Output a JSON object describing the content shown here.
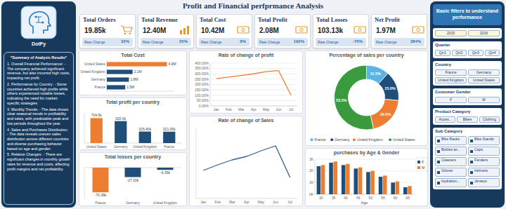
{
  "header": {
    "title": "Profit and Financial perfprmance Analysis"
  },
  "logo": {
    "text": "DotPy"
  },
  "summary": {
    "title": "*Summary of Analysis Results*",
    "items": [
      "1. Overall Financial Performance: - The company achieved significant revenue, but also incurred high costs, impacting net profit.",
      "2. Performance by Country: - Some countries achieved high profits while others experienced notable losses, indicating the need for market-specific strategies.",
      "3. Monthly Trends: - The data shows clear seasonal trends in profitability and sales, with predictable peak and low periods throughout the year.",
      "4. Sales and Purchases Distribution: - The data reveals uneven sales distribution across different countries and diverse purchasing behavior based on age and gender.",
      "5. Relative Changes: - There are significant changes in monthly growth rates for revenue and costs, affecting profit margins and net profitability."
    ]
  },
  "kpis": [
    {
      "title": "Total Orders",
      "value": "19.85k",
      "rate_label": "Rate Change",
      "rate": "32%"
    },
    {
      "title": "Total Revenue",
      "value": "12.40M",
      "rate_label": "Rate Change",
      "rate": "25%"
    },
    {
      "title": "Total Cost",
      "value": "10.42M",
      "rate_label": "Rate Change",
      "rate": "8%"
    },
    {
      "title": "Total Profit",
      "value": "2.08M",
      "rate_label": "Rate Change",
      "rate": "192%"
    },
    {
      "title": "Total Losses",
      "value": "103.13k",
      "rate_label": "Rate Change",
      "rate": "-76%"
    },
    {
      "title": "Net Profit",
      "value": "1.97M",
      "rate_label": "Rate Change",
      "rate": "384%"
    }
  ],
  "filters": {
    "title": "Basic filters to understand performance",
    "groups": [
      {
        "options": [
          "2015",
          "2016"
        ]
      },
      {
        "label": "Quarter",
        "options": [
          "Qtr1",
          "Qtr2",
          "Qtr3",
          "Qtr4"
        ]
      },
      {
        "label": "Country",
        "options": [
          "France",
          "Germany",
          "United Kingdom",
          "United States"
        ]
      },
      {
        "label": "Customer Gender",
        "options": [
          "F",
          "M"
        ]
      },
      {
        "label": "Product Category",
        "options": [
          "Acces...",
          "Bikes",
          "Clothing"
        ]
      },
      {
        "label": "Sub Category",
        "options": [
          "Bike Racks",
          "Bike Stands",
          "Bottles an...",
          "Caps",
          "Cleaners",
          "Fenders",
          "Gloves",
          "Helmets",
          "Hydration...",
          "Jerseys"
        ]
      }
    ]
  },
  "chart_data": [
    {
      "type": "bar",
      "orientation": "horizontal",
      "title": "Total Cost",
      "categories": [
        "United States",
        "United Kingdom",
        "Germany",
        "France"
      ],
      "values": [
        4900000,
        2100000,
        1800000,
        1500000
      ],
      "value_labels": [
        "4.9M",
        "2.1M",
        "1.8M",
        "1.5M"
      ],
      "colors": [
        "#ed7d31",
        "#1f4e79",
        "#1f4e79",
        "#1f4e79"
      ],
      "xlim": [
        0,
        5500000
      ],
      "data_labels": true,
      "tick_labels": "y"
    },
    {
      "type": "bar",
      "title": "Total profit per country",
      "categories": [
        "United States",
        "Germany",
        "United Kingdom",
        "France"
      ],
      "values": [
        704500,
        620000,
        325400,
        321050
      ],
      "value_labels": [
        "704.5k",
        "620.0k",
        "325.40k",
        "321.05k"
      ],
      "colors": [
        "#ed7d31",
        "#1f4e79",
        "#1f4e79",
        "#1f4e79"
      ],
      "ylim": [
        0,
        850000
      ],
      "data_labels": true,
      "tick_labels": "x"
    },
    {
      "type": "bar",
      "title": "Total losses per country",
      "categories": [
        "France",
        "Germany",
        "United Kingdom"
      ],
      "values": [
        -70390,
        -27000,
        -6390
      ],
      "value_labels": [
        "-70.39k",
        "-27.00k",
        "-6.39k"
      ],
      "colors": [
        "#ed7d31",
        "#1f4e79",
        "#1f4e79"
      ],
      "ylim": [
        -90000,
        0
      ],
      "data_labels": true,
      "tick_labels": "x"
    },
    {
      "type": "line",
      "title": "Rate of change of profit",
      "categories": [
        "Jan",
        "Feb",
        "Mar",
        "Apr",
        "May",
        "Jun",
        "Jul"
      ],
      "values": [
        255,
        270,
        285,
        300,
        320,
        330,
        100
      ],
      "color": "#ed7d31",
      "ylim": [
        0,
        400
      ],
      "yticks": [
        {
          "value": 0,
          "label": "0.00%"
        },
        {
          "value": 50,
          "label": "50.00%"
        },
        {
          "value": 100,
          "label": "100.00%"
        },
        {
          "value": 150,
          "label": "150.00%"
        },
        {
          "value": 200,
          "label": "200.00%"
        },
        {
          "value": 250,
          "label": "250.00%"
        },
        {
          "value": 300,
          "label": "300.00%"
        },
        {
          "value": 350,
          "label": "350.00%"
        },
        {
          "value": 400,
          "label": "400.00%"
        }
      ],
      "grid": true
    },
    {
      "type": "line",
      "title": "Rate of change of Sales",
      "categories": [
        "Jan",
        "Feb",
        "Mar",
        "Apr",
        "May",
        "Jun",
        "Jul"
      ],
      "values": [
        40,
        48,
        55,
        60,
        68,
        75,
        30
      ],
      "color": "#2e5f8f",
      "ylim": [
        0,
        100
      ],
      "tick_labels": "x"
    },
    {
      "type": "pie",
      "title": "Percentage of sales per country",
      "categories": [
        "France",
        "Germany",
        "United Kingdom",
        "United States"
      ],
      "values": [
        11.5,
        15.0,
        20.0,
        53.5
      ],
      "value_labels": [
        "11.5%",
        "15.0%",
        "20.0%",
        "53.5%"
      ],
      "colors": [
        "#5ab4e5",
        "#1f4e79",
        "#ed7d31",
        "#3a9a3e"
      ],
      "legend": "bottom",
      "data_labels": true
    },
    {
      "type": "bar",
      "title": "purchases by Age & Gender",
      "xlabel": "Age",
      "categories": [
        "30",
        "35",
        "40",
        "45",
        "50",
        "55",
        "60",
        "65"
      ],
      "series": [
        {
          "name": "F",
          "color": "#1f4e79",
          "values": [
            2400,
            2700,
            2500,
            2200,
            1900,
            1500,
            1000,
            600
          ]
        },
        {
          "name": "M",
          "color": "#ed7d31",
          "values": [
            2500,
            2800,
            2600,
            2300,
            2000,
            1600,
            1100,
            700
          ]
        }
      ],
      "ylim": [
        0,
        3000
      ],
      "yticks": [
        {
          "value": 0,
          "label": "0K"
        },
        {
          "value": 1000,
          "label": "1K"
        },
        {
          "value": 2000,
          "label": "2K"
        },
        {
          "value": 3000,
          "label": "3K"
        }
      ],
      "grid": true,
      "legend": "right"
    }
  ]
}
